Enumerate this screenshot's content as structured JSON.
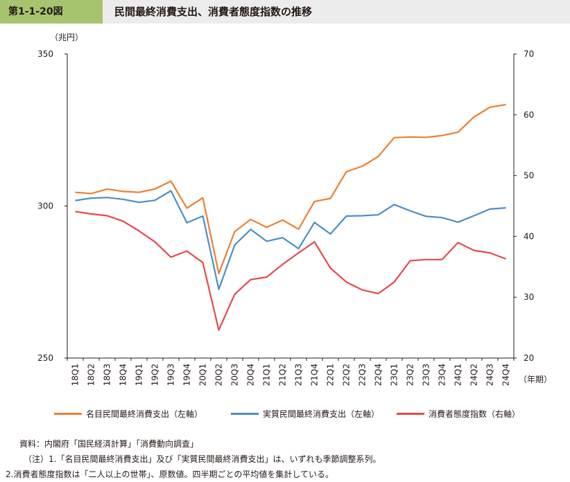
{
  "header": {
    "figure_number": "第1-1-20図",
    "title": "民間最終消費支出、消費者態度指数の推移"
  },
  "colors": {
    "nominal": "#ed7d31",
    "real": "#4a8dc8",
    "confidence": "#e84848",
    "header_bg": "#ececec",
    "label_bg": "#a6c46e"
  },
  "chart_data": {
    "type": "line",
    "left_unit": "（兆円）",
    "x_unit": "（年期）",
    "categories": [
      "18Q1",
      "18Q2",
      "18Q3",
      "18Q4",
      "19Q1",
      "19Q2",
      "19Q3",
      "19Q4",
      "20Q1",
      "20Q2",
      "20Q3",
      "20Q4",
      "21Q1",
      "21Q2",
      "21Q3",
      "21Q4",
      "22Q1",
      "22Q2",
      "22Q3",
      "22Q4",
      "23Q1",
      "23Q2",
      "23Q3",
      "23Q4",
      "24Q1",
      "24Q2",
      "24Q3",
      "24Q4"
    ],
    "left_axis": {
      "min": 250,
      "max": 350,
      "ticks": [
        250,
        300,
        350
      ]
    },
    "right_axis": {
      "min": 20,
      "max": 70,
      "ticks": [
        20,
        30,
        40,
        50,
        60,
        70
      ]
    },
    "series": [
      {
        "name": "名目民間最終消費支出（左軸）",
        "axis": "left",
        "color_key": "nominal",
        "values": [
          304.5,
          304.1,
          305.6,
          304.8,
          304.5,
          305.6,
          308.2,
          299.3,
          302.7,
          277.8,
          291.6,
          295.6,
          293.0,
          295.4,
          292.4,
          301.5,
          302.5,
          311.3,
          313.1,
          316.3,
          322.5,
          322.7,
          322.6,
          323.2,
          324.3,
          329.3,
          332.5,
          333.4
        ]
      },
      {
        "name": "実質民間最終消費支出（左軸）",
        "axis": "left",
        "color_key": "real",
        "values": [
          301.8,
          302.6,
          302.8,
          302.2,
          301.2,
          301.9,
          305.0,
          294.5,
          296.7,
          272.6,
          287.2,
          292.3,
          288.4,
          289.6,
          286.0,
          294.6,
          290.8,
          296.7,
          296.8,
          297.1,
          300.5,
          298.4,
          296.6,
          296.2,
          294.7,
          296.8,
          299.0,
          299.4
        ]
      },
      {
        "name": "消費者態度指数（右軸）",
        "axis": "right",
        "color_key": "confidence",
        "values": [
          44.1,
          43.7,
          43.4,
          42.5,
          40.9,
          39.1,
          36.6,
          37.6,
          35.7,
          24.6,
          30.5,
          32.9,
          33.3,
          35.4,
          37.3,
          39.1,
          34.8,
          32.5,
          31.2,
          30.6,
          32.5,
          36.0,
          36.2,
          36.2,
          39.0,
          37.7,
          37.3,
          36.3
        ]
      }
    ]
  },
  "notes": [
    "資料：内閣府「国民経済計算」「消費動向調査」",
    "（注）1.「名目民間最終消費支出」及び「実質民間最終消費支出」は、いずれも季節調整系列。",
    "2.消費者態度指数は「二人以上の世帯」、原数値。四半期ごとの平均値を集計している。"
  ]
}
